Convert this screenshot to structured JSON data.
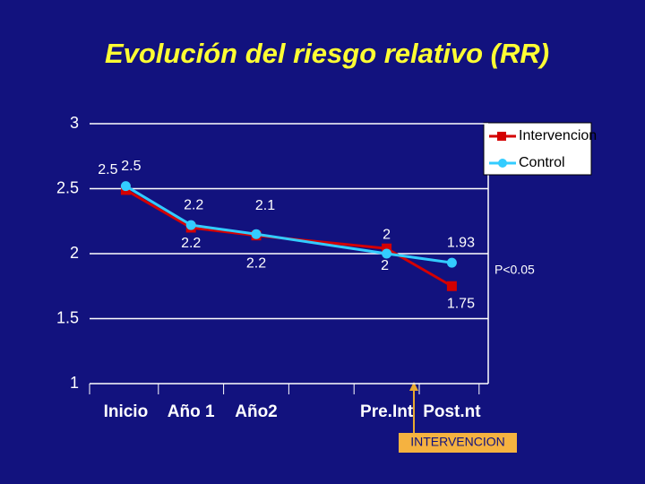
{
  "chart_data": {
    "type": "line",
    "title": "Evolución del riesgo relativo (RR)",
    "categories": [
      "Inicio",
      "Año 1",
      "Año2",
      "Pre.Int",
      "Post.nt"
    ],
    "series": [
      {
        "name": "Intervencion",
        "color": "#d40000",
        "values": [
          2.49,
          2.2,
          2.14,
          2.04,
          1.75
        ],
        "value_labels": [
          "2.5",
          "2.2",
          "2.1",
          "2",
          "1.75"
        ]
      },
      {
        "name": "Control",
        "color": "#33ccff",
        "values": [
          2.52,
          2.22,
          2.15,
          2.0,
          1.93
        ],
        "value_labels": [
          "2.5",
          "2.2",
          "2.2",
          "2",
          "1.93"
        ]
      }
    ],
    "ylim": [
      1,
      3
    ],
    "yticks": [
      1,
      1.5,
      2,
      2.5,
      3
    ],
    "grid": true,
    "legend": "upper right",
    "annotations": [
      "P<0.05",
      "INTERVENCION"
    ]
  }
}
